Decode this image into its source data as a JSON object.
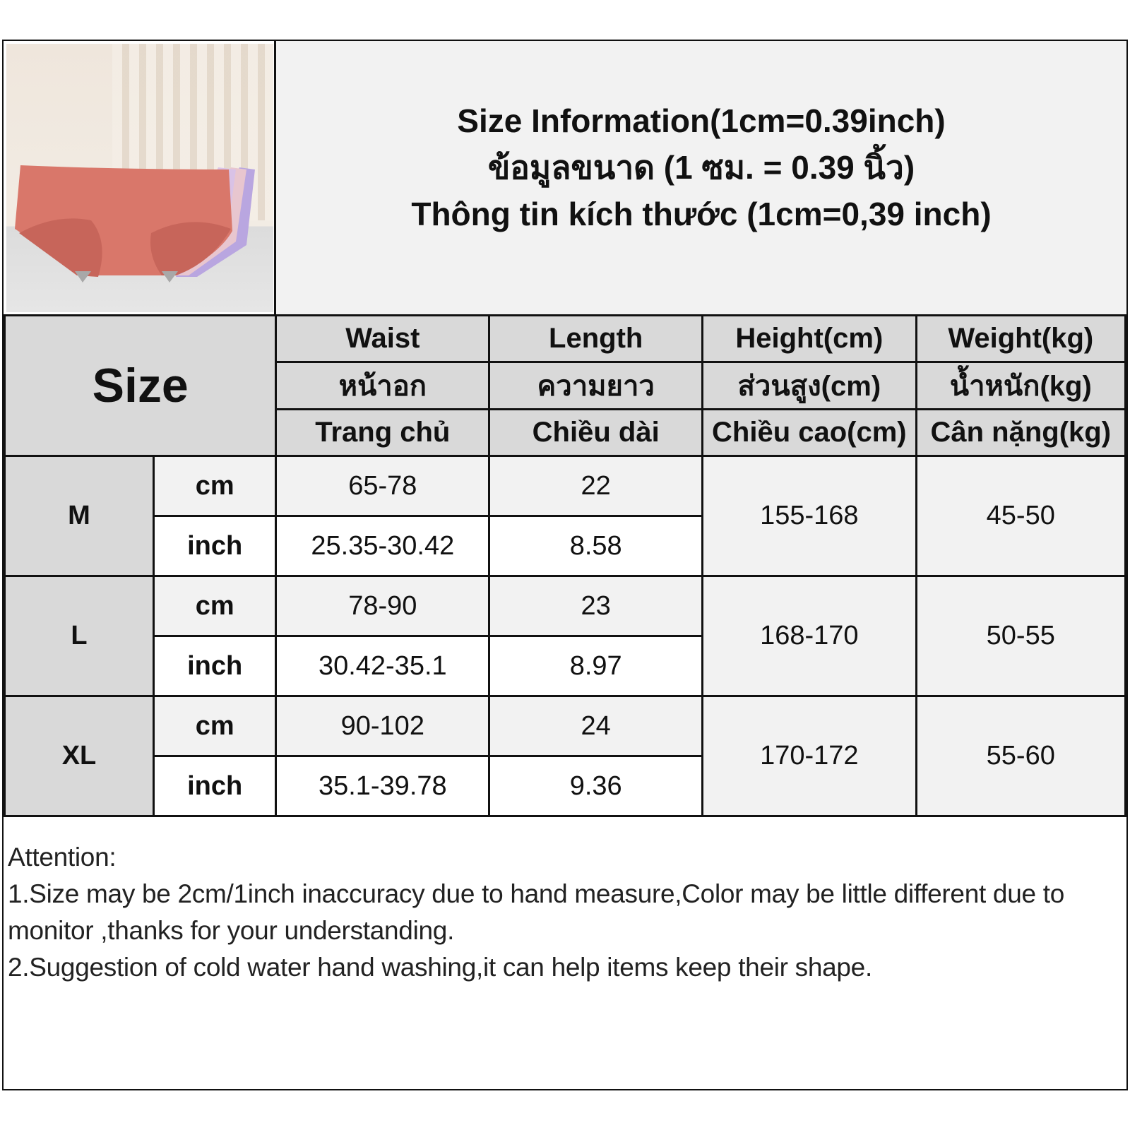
{
  "header": {
    "titles": [
      "Size Information(1cm=0.39inch)",
      "ข้อมูลขนาด (1 ซม. = 0.39 นิ้ว)",
      "Thông tin kích thước (1cm=0,39 inch)"
    ]
  },
  "table": {
    "size_label": "Size",
    "columns": [
      {
        "en": "Waist",
        "th": "หน้าอก",
        "vi": "Trang chủ"
      },
      {
        "en": "Length",
        "th": "ความยาว",
        "vi": "Chiều dài"
      },
      {
        "en": "Height(cm)",
        "th": "ส่วนสูง(cm)",
        "vi": "Chiều cao(cm)"
      },
      {
        "en": "Weight(kg)",
        "th": "น้ำหนัก(kg)",
        "vi": "Cân nặng(kg)"
      }
    ],
    "rows": [
      {
        "size": "M",
        "cm_label": "cm",
        "inch_label": "inch",
        "waist_cm": "65-78",
        "length_cm": "22",
        "waist_inch": "25.35-30.42",
        "length_inch": "8.58",
        "height": "155-168",
        "weight": "45-50"
      },
      {
        "size": "L",
        "cm_label": "cm",
        "inch_label": "inch",
        "waist_cm": "78-90",
        "length_cm": "23",
        "waist_inch": "30.42-35.1",
        "length_inch": "8.97",
        "height": "168-170",
        "weight": "50-55"
      },
      {
        "size": "XL",
        "cm_label": "cm",
        "inch_label": "inch",
        "waist_cm": "90-102",
        "length_cm": "24",
        "waist_inch": "35.1-39.78",
        "length_inch": "9.36",
        "height": "170-172",
        "weight": "55-60"
      }
    ]
  },
  "notes": [
    "Attention:",
    "1.Size may be 2cm/1inch inaccuracy due to hand measure,Color may be little different due to monitor ,thanks for your understanding.",
    "2.Suggestion of cold water hand washing,it can help items keep their shape."
  ]
}
